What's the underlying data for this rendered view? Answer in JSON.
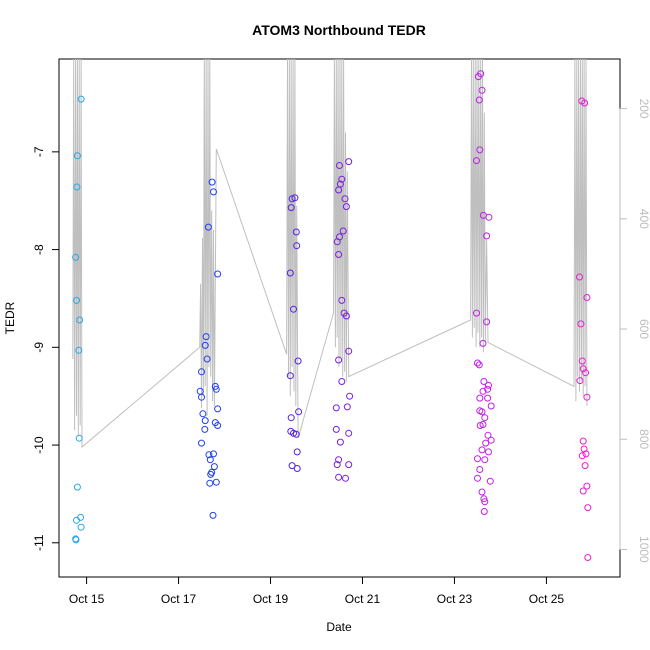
{
  "chart_data": {
    "type": "scatter",
    "title": "ATOM3 Northbound TEDR",
    "xlabel": "Date",
    "ylabel": "TEDR",
    "x_ticks": [
      "Oct 15",
      "Oct 17",
      "Oct 19",
      "Oct 21",
      "Oct 23",
      "Oct 25"
    ],
    "x_tick_days": [
      15,
      17,
      19,
      21,
      23,
      25
    ],
    "xlim": [
      14.4,
      26.6
    ],
    "ylim": [
      -11.35,
      -6.05
    ],
    "y_ticks": [
      -11,
      -10,
      -9,
      -8,
      -7
    ],
    "y_right_ticks": [
      200,
      400,
      600,
      800,
      1000
    ],
    "y_right_lim": [
      1050,
      110
    ],
    "grid": false,
    "legend": "none",
    "colors": {
      "line": "#bfbfbf",
      "right_axis": "#bdbdbd",
      "axis": "#000000"
    },
    "series": [
      {
        "color": "#29a8e8",
        "points": [
          [
            14.88,
            -6.46
          ],
          [
            14.8,
            -7.04
          ],
          [
            14.79,
            -7.36
          ],
          [
            14.76,
            -8.08
          ],
          [
            14.78,
            -8.52
          ],
          [
            14.85,
            -8.72
          ],
          [
            14.83,
            -9.03
          ],
          [
            14.84,
            -9.93
          ],
          [
            14.8,
            -10.43
          ],
          [
            14.78,
            -10.77
          ],
          [
            14.87,
            -10.74
          ],
          [
            14.88,
            -10.84
          ],
          [
            14.76,
            -10.96
          ],
          [
            14.77,
            -10.97
          ]
        ]
      },
      {
        "color": "#1f40f0",
        "points": [
          [
            17.73,
            -7.31
          ],
          [
            17.76,
            -7.41
          ],
          [
            17.65,
            -7.77
          ],
          [
            17.85,
            -8.25
          ],
          [
            17.6,
            -8.89
          ],
          [
            17.58,
            -8.98
          ],
          [
            17.62,
            -9.12
          ],
          [
            17.5,
            -9.25
          ],
          [
            17.8,
            -9.4
          ],
          [
            17.82,
            -9.43
          ],
          [
            17.47,
            -9.45
          ],
          [
            17.5,
            -9.51
          ],
          [
            17.85,
            -9.63
          ],
          [
            17.53,
            -9.68
          ],
          [
            17.58,
            -9.75
          ],
          [
            17.8,
            -9.77
          ],
          [
            17.85,
            -9.8
          ],
          [
            17.57,
            -9.84
          ],
          [
            17.5,
            -9.98
          ],
          [
            17.76,
            -10.09
          ],
          [
            17.66,
            -10.1
          ],
          [
            17.69,
            -10.15
          ],
          [
            17.78,
            -10.22
          ],
          [
            17.72,
            -10.28
          ],
          [
            17.7,
            -10.3
          ],
          [
            17.82,
            -10.38
          ],
          [
            17.68,
            -10.39
          ],
          [
            17.75,
            -10.72
          ]
        ]
      },
      {
        "color": "#5520e6",
        "points": [
          [
            19.53,
            -7.47
          ],
          [
            19.47,
            -7.48
          ],
          [
            19.45,
            -7.57
          ],
          [
            19.56,
            -7.82
          ],
          [
            19.57,
            -7.96
          ],
          [
            19.43,
            -8.24
          ],
          [
            19.5,
            -8.61
          ],
          [
            19.6,
            -9.14
          ],
          [
            19.43,
            -9.29
          ],
          [
            19.61,
            -9.66
          ],
          [
            19.45,
            -9.72
          ],
          [
            19.44,
            -9.86
          ],
          [
            19.5,
            -9.88
          ],
          [
            19.56,
            -9.89
          ],
          [
            19.58,
            -10.07
          ],
          [
            19.47,
            -10.21
          ],
          [
            19.58,
            -10.24
          ]
        ]
      },
      {
        "color": "#7a1fe0",
        "points": [
          [
            20.7,
            -7.1
          ],
          [
            20.5,
            -7.14
          ],
          [
            20.55,
            -7.28
          ],
          [
            20.52,
            -7.33
          ],
          [
            20.48,
            -7.39
          ],
          [
            20.62,
            -7.48
          ],
          [
            20.65,
            -7.56
          ],
          [
            20.58,
            -7.81
          ],
          [
            20.5,
            -7.87
          ],
          [
            20.45,
            -7.92
          ],
          [
            20.48,
            -8.05
          ],
          [
            20.55,
            -8.52
          ],
          [
            20.6,
            -8.65
          ],
          [
            20.65,
            -8.68
          ],
          [
            20.7,
            -9.04
          ],
          [
            20.48,
            -9.13
          ],
          [
            20.55,
            -9.35
          ],
          [
            20.72,
            -9.5
          ],
          [
            20.43,
            -9.62
          ],
          [
            20.67,
            -9.61
          ],
          [
            20.43,
            -9.84
          ],
          [
            20.7,
            -9.88
          ],
          [
            20.52,
            -9.97
          ],
          [
            20.48,
            -10.15
          ],
          [
            20.45,
            -10.2
          ],
          [
            20.7,
            -10.2
          ],
          [
            20.48,
            -10.33
          ],
          [
            20.63,
            -10.34
          ]
        ]
      },
      {
        "color": "#c01fe6",
        "points": [
          [
            23.57,
            -6.2
          ],
          [
            23.52,
            -6.23
          ],
          [
            23.6,
            -6.37
          ],
          [
            23.54,
            -6.47
          ],
          [
            23.55,
            -6.98
          ],
          [
            23.48,
            -7.09
          ],
          [
            23.63,
            -7.65
          ],
          [
            23.75,
            -7.67
          ],
          [
            23.7,
            -7.86
          ],
          [
            23.48,
            -8.65
          ],
          [
            23.7,
            -8.74
          ],
          [
            23.62,
            -8.96
          ],
          [
            23.5,
            -9.16
          ],
          [
            23.54,
            -9.18
          ],
          [
            23.64,
            -9.35
          ],
          [
            23.74,
            -9.39
          ],
          [
            23.72,
            -9.43
          ],
          [
            23.62,
            -9.45
          ],
          [
            23.55,
            -9.52
          ],
          [
            23.72,
            -9.52
          ],
          [
            23.8,
            -9.6
          ],
          [
            23.55,
            -9.65
          ],
          [
            23.6,
            -9.66
          ],
          [
            23.66,
            -9.72
          ],
          [
            23.62,
            -9.79
          ],
          [
            23.56,
            -9.8
          ],
          [
            23.73,
            -9.9
          ],
          [
            23.8,
            -9.95
          ],
          [
            23.68,
            -9.98
          ],
          [
            23.6,
            -10.05
          ],
          [
            23.74,
            -10.07
          ],
          [
            23.5,
            -10.14
          ],
          [
            23.66,
            -10.15
          ],
          [
            23.55,
            -10.25
          ],
          [
            23.78,
            -10.37
          ],
          [
            23.5,
            -10.34
          ],
          [
            23.6,
            -10.48
          ],
          [
            23.64,
            -10.55
          ],
          [
            23.66,
            -10.58
          ],
          [
            23.65,
            -10.68
          ]
        ]
      },
      {
        "color": "#e81fd2",
        "points": [
          [
            25.77,
            -6.48
          ],
          [
            25.83,
            -6.5
          ],
          [
            25.72,
            -8.28
          ],
          [
            25.88,
            -8.49
          ],
          [
            25.75,
            -8.76
          ],
          [
            25.78,
            -9.14
          ],
          [
            25.8,
            -9.22
          ],
          [
            25.85,
            -9.26
          ],
          [
            25.73,
            -9.34
          ],
          [
            25.88,
            -9.51
          ],
          [
            25.8,
            -9.96
          ],
          [
            25.82,
            -10.04
          ],
          [
            25.86,
            -10.09
          ],
          [
            25.78,
            -10.11
          ],
          [
            25.84,
            -10.21
          ],
          [
            25.88,
            -10.42
          ],
          [
            25.8,
            -10.47
          ],
          [
            25.9,
            -10.64
          ],
          [
            25.9,
            -11.15
          ]
        ]
      }
    ],
    "line_points": [
      [
        14.7,
        -9.12
      ],
      [
        14.72,
        -6.05
      ],
      [
        14.74,
        -9.85
      ],
      [
        14.76,
        -6.05
      ],
      [
        14.78,
        -9.7
      ],
      [
        14.8,
        -6.05
      ],
      [
        14.82,
        -9.9
      ],
      [
        14.84,
        -6.05
      ],
      [
        14.86,
        -9.8
      ],
      [
        14.88,
        -6.05
      ],
      [
        14.9,
        -10.02
      ],
      [
        17.46,
        -9.0
      ],
      [
        17.48,
        -8.35
      ],
      [
        17.5,
        -9.62
      ],
      [
        17.52,
        -7.88
      ],
      [
        17.54,
        -9.5
      ],
      [
        17.56,
        -6.05
      ],
      [
        17.58,
        -9.4
      ],
      [
        17.6,
        -6.05
      ],
      [
        17.62,
        -9.7
      ],
      [
        17.64,
        -6.05
      ],
      [
        17.66,
        -9.2
      ],
      [
        17.68,
        -6.05
      ],
      [
        17.7,
        -9.3
      ],
      [
        17.72,
        -7.6
      ],
      [
        17.74,
        -9.55
      ],
      [
        17.76,
        -7.8
      ],
      [
        17.78,
        -9.6
      ],
      [
        17.82,
        -6.97
      ],
      [
        19.35,
        -9.07
      ],
      [
        19.37,
        -6.05
      ],
      [
        19.39,
        -9.3
      ],
      [
        19.41,
        -6.05
      ],
      [
        19.43,
        -9.5
      ],
      [
        19.45,
        -6.05
      ],
      [
        19.47,
        -9.2
      ],
      [
        19.49,
        -6.05
      ],
      [
        19.51,
        -9.45
      ],
      [
        19.53,
        -6.05
      ],
      [
        19.55,
        -9.6
      ],
      [
        19.57,
        -7.55
      ],
      [
        19.6,
        -9.93
      ],
      [
        20.37,
        -8.65
      ],
      [
        20.39,
        -6.05
      ],
      [
        20.41,
        -9.0
      ],
      [
        20.43,
        -6.05
      ],
      [
        20.45,
        -8.9
      ],
      [
        20.47,
        -6.05
      ],
      [
        20.49,
        -9.2
      ],
      [
        20.51,
        -6.05
      ],
      [
        20.53,
        -9.1
      ],
      [
        20.55,
        -6.05
      ],
      [
        20.57,
        -9.3
      ],
      [
        20.59,
        -6.05
      ],
      [
        20.61,
        -9.25
      ],
      [
        20.63,
        -6.8
      ],
      [
        20.65,
        -9.35
      ],
      [
        20.67,
        -7.2
      ],
      [
        20.7,
        -9.3
      ],
      [
        23.35,
        -8.72
      ],
      [
        23.37,
        -6.05
      ],
      [
        23.39,
        -8.9
      ],
      [
        23.41,
        -6.05
      ],
      [
        23.43,
        -8.8
      ],
      [
        23.45,
        -6.05
      ],
      [
        23.47,
        -9.0
      ],
      [
        23.49,
        -6.05
      ],
      [
        23.51,
        -8.85
      ],
      [
        23.53,
        -6.05
      ],
      [
        23.55,
        -9.0
      ],
      [
        23.57,
        -6.05
      ],
      [
        23.59,
        -8.9
      ],
      [
        23.61,
        -6.05
      ],
      [
        23.63,
        -9.05
      ],
      [
        23.65,
        -6.6
      ],
      [
        23.67,
        -8.95
      ],
      [
        23.7,
        -7.9
      ],
      [
        23.73,
        -8.95
      ],
      [
        25.6,
        -9.4
      ],
      [
        25.62,
        -6.05
      ],
      [
        25.64,
        -9.55
      ],
      [
        25.66,
        -6.05
      ],
      [
        25.68,
        -9.3
      ],
      [
        25.7,
        -6.05
      ],
      [
        25.72,
        -9.45
      ],
      [
        25.74,
        -6.05
      ],
      [
        25.76,
        -9.35
      ],
      [
        25.78,
        -6.05
      ],
      [
        25.8,
        -9.5
      ],
      [
        25.82,
        -6.05
      ],
      [
        25.84,
        -9.4
      ],
      [
        25.86,
        -6.05
      ],
      [
        25.88,
        -9.6
      ]
    ]
  }
}
